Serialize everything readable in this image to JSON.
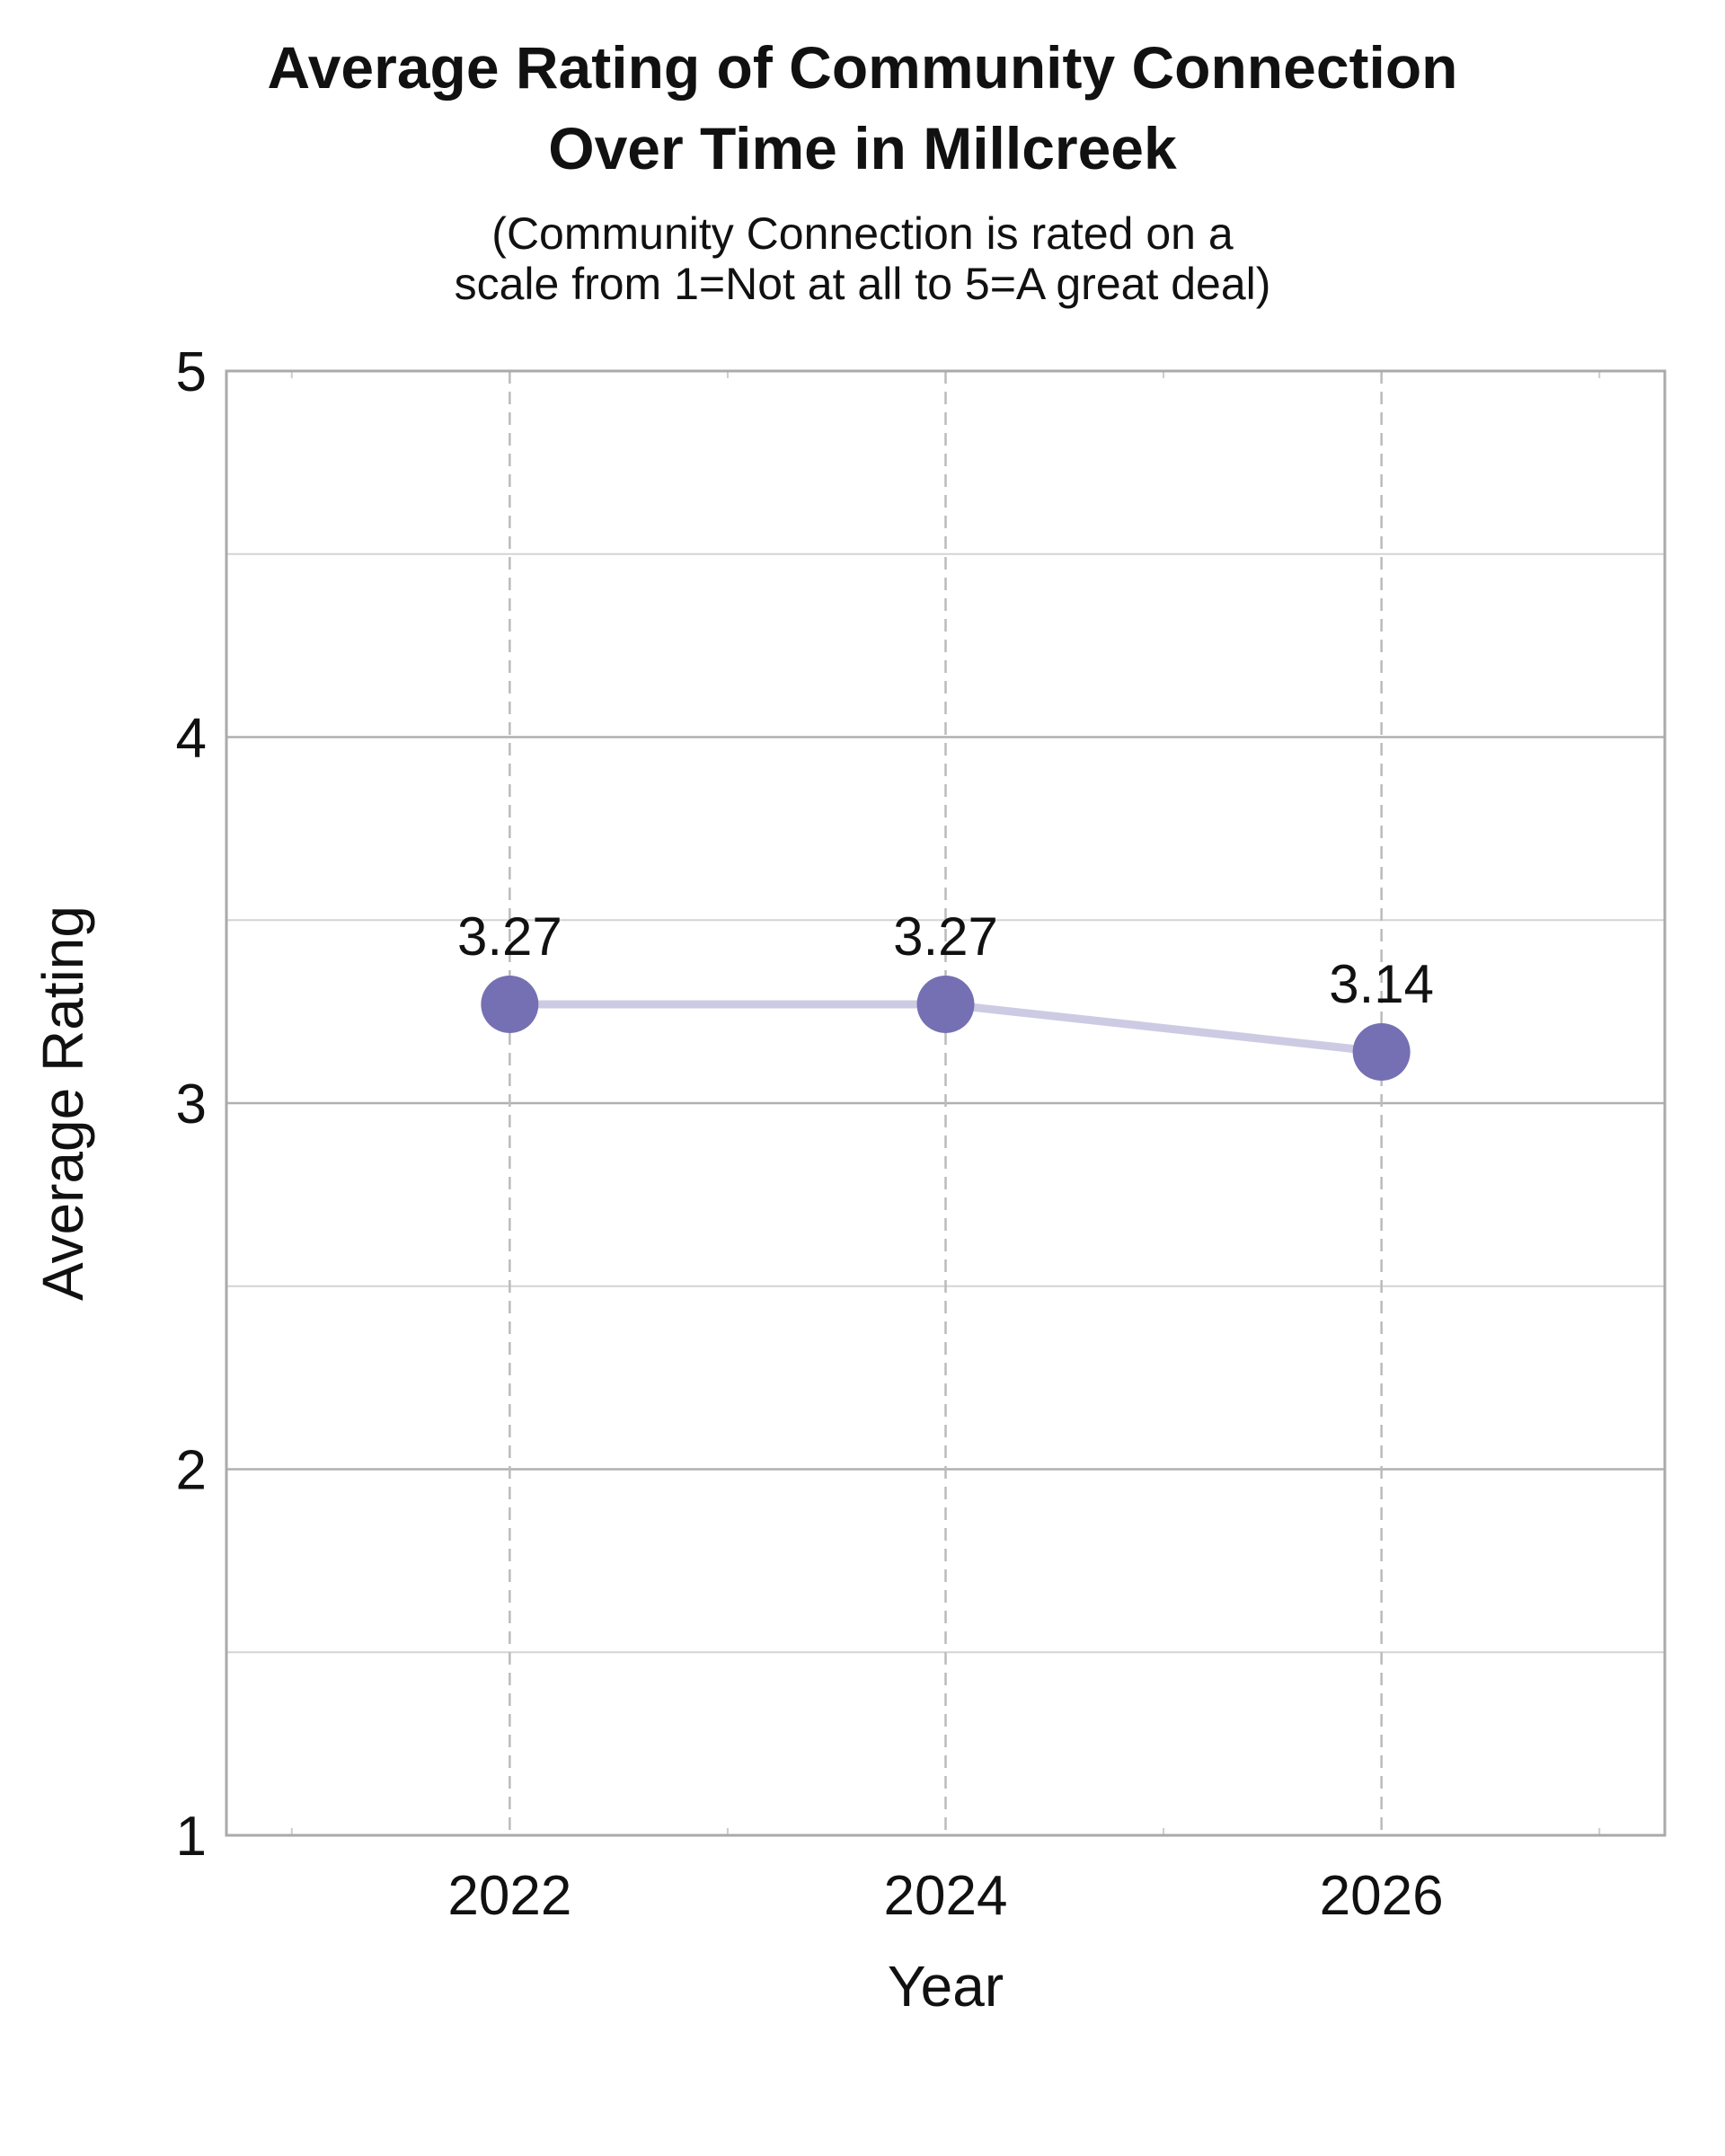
{
  "chart_data": {
    "type": "line",
    "title_lines": [
      "Average Rating of Community Connection",
      "Over Time in Millcreek"
    ],
    "subtitle_lines": [
      "(Community Connection is rated on a",
      "scale from 1=Not at all to 5=A great deal)"
    ],
    "xlabel": "Year",
    "ylabel": "Average Rating",
    "x": [
      2022,
      2024,
      2026
    ],
    "x_tick_labels": [
      "2022",
      "2024",
      "2026"
    ],
    "xlim": [
      2020.7,
      2027.3
    ],
    "ylim": [
      1,
      5
    ],
    "y_ticks": [
      1,
      2,
      3,
      4,
      5
    ],
    "y_tick_labels": [
      "1",
      "2",
      "3",
      "4",
      "5"
    ],
    "series": [
      {
        "values": [
          3.27,
          3.27,
          3.14
        ],
        "labels": [
          "3.27",
          "3.27",
          "3.14"
        ]
      }
    ],
    "grid": true,
    "colors": {
      "marker": "#7570b3",
      "line": "#cdcbe3",
      "grid": "#bbbbbb",
      "axis": "#aaaaaa"
    }
  }
}
